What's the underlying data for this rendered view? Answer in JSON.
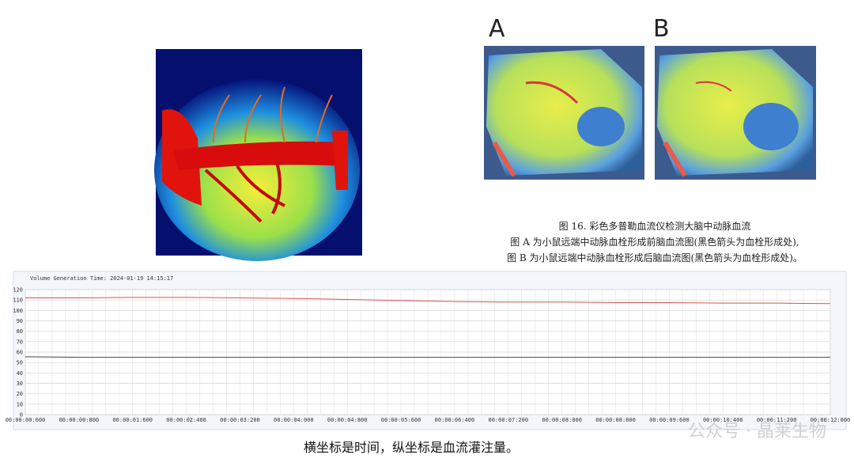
{
  "panels": {
    "a_label": "A",
    "b_label": "B"
  },
  "caption": {
    "line1": "图 16.  彩色多普勒血流仪检测大脑中动脉血流",
    "line2": "图 A 为小鼠远端中动脉血栓形成前脑血流图(黑色箭头为血栓形成处),",
    "line3": "图 B 为小鼠远端中动脉血栓形成后脑血流图(黑色箭头为血栓形成处)。"
  },
  "chart_data": {
    "type": "line",
    "subtitle": "Volume Generation Time: 2024-01-19 14:15:17",
    "categories": [
      "00:00:00:000",
      "00:00:00:800",
      "00:00:01:600",
      "00:00:02:400",
      "00:00:03:200",
      "00:00:04:000",
      "00:00:04:800",
      "00:00:05:600",
      "00:00:06:400",
      "00:00:07:200",
      "00:00:08:000",
      "00:00:08:800",
      "00:00:09:600",
      "00:00:10:400",
      "00:00:11:200",
      "00:00:12:000"
    ],
    "series": [
      {
        "color": "#d9534f",
        "values": [
          112,
          112,
          112.5,
          112.5,
          112,
          111.5,
          110.5,
          109.5,
          108.5,
          108,
          108,
          107.5,
          107.5,
          107,
          107,
          106.5
        ]
      },
      {
        "color": "#444444",
        "values": [
          55.5,
          55,
          55,
          55,
          55,
          55,
          55,
          55,
          55,
          55,
          55,
          55,
          55,
          55,
          55,
          55
        ]
      }
    ],
    "ylim": [
      0,
      120
    ],
    "yticks": [
      0,
      10,
      20,
      30,
      40,
      50,
      60,
      70,
      80,
      90,
      100,
      110,
      120
    ],
    "grid": true
  },
  "footer": {
    "note": "横坐标是时间，纵坐标是血流灌注量。",
    "watermark": "公众号 · 晶莱生物"
  }
}
